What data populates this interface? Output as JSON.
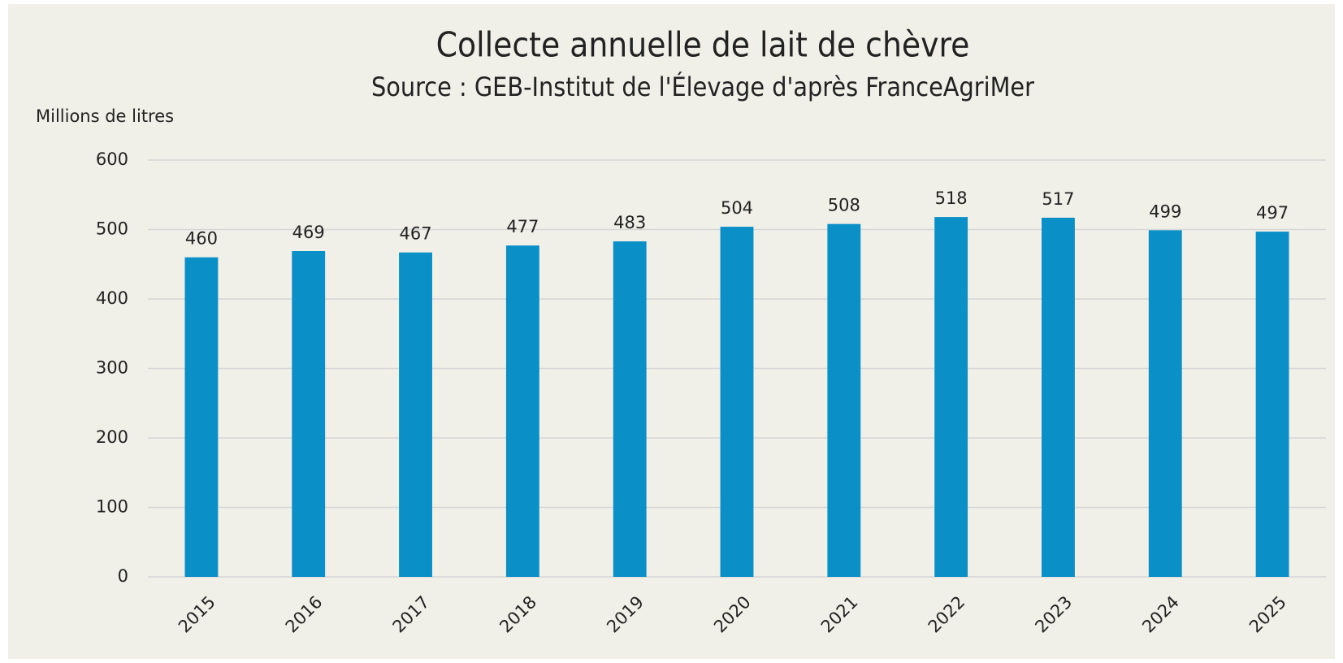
{
  "chart_data": {
    "type": "bar",
    "title": "Collecte annuelle de lait de chèvre",
    "subtitle": "Source : GEB-Institut de l'Élevage d'après FranceAgriMer",
    "y_label": "Millions de litres",
    "categories": [
      "2015",
      "2016",
      "2017",
      "2018",
      "2019",
      "2020",
      "2021",
      "2022",
      "2023",
      "2024",
      "2025"
    ],
    "values": [
      460,
      469,
      467,
      477,
      483,
      504,
      508,
      518,
      517,
      499,
      497
    ],
    "color": "#0a90c6",
    "ylim": [
      0,
      600
    ],
    "yticks": [
      0,
      100,
      200,
      300,
      400,
      500,
      600
    ],
    "grid": true
  }
}
